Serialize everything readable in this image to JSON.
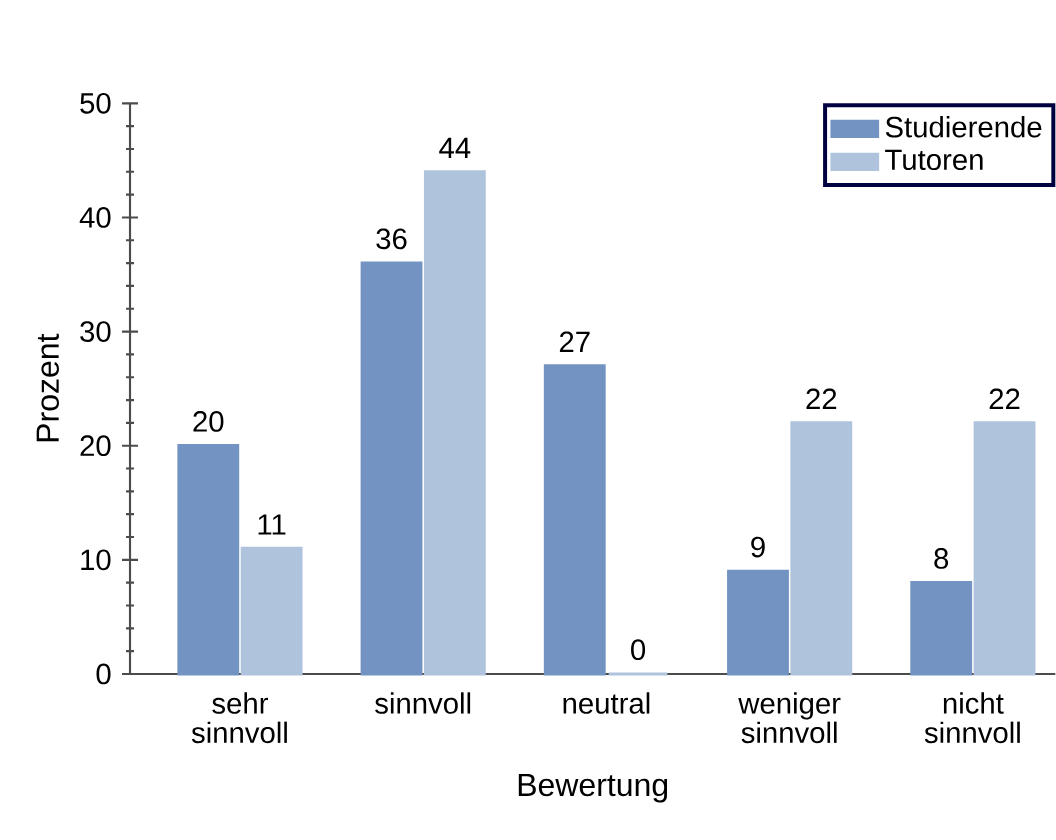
{
  "chart_data": {
    "type": "bar",
    "xlabel": "Bewertung",
    "ylabel": "Prozent",
    "categories": [
      "sehr sinnvoll",
      "sinnvoll",
      "neutral",
      "weniger sinnvoll",
      "nicht sinnvoll"
    ],
    "series": [
      {
        "name": "Studierende",
        "color": "#7393c2",
        "values": [
          20,
          36,
          27,
          9,
          8
        ]
      },
      {
        "name": "Tutoren",
        "color": "#b0c3dd",
        "values": [
          11,
          44,
          0,
          22,
          22
        ]
      }
    ],
    "ylim": [
      0,
      50
    ],
    "yticks": [
      0,
      10,
      20,
      30,
      40,
      50
    ],
    "data_labels": true,
    "grid": false,
    "legend": "top right"
  }
}
